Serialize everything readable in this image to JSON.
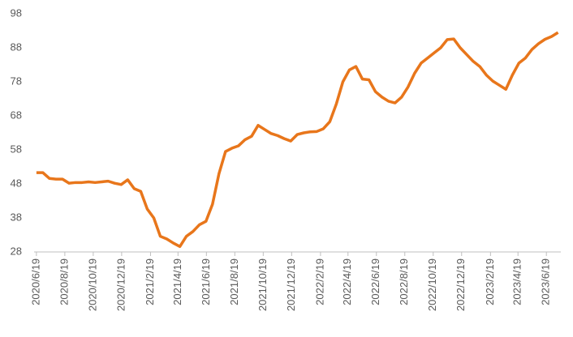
{
  "chart_data": {
    "type": "line",
    "x": [
      "2020/6/19",
      "2020/7/3",
      "2020/7/17",
      "2020/7/31",
      "2020/8/14",
      "2020/8/28",
      "2020/9/11",
      "2020/9/25",
      "2020/10/9",
      "2020/10/23",
      "2020/11/6",
      "2020/11/20",
      "2020/12/4",
      "2020/12/18",
      "2021/1/1",
      "2021/1/15",
      "2021/1/29",
      "2021/2/12",
      "2021/2/26",
      "2021/3/12",
      "2021/3/26",
      "2021/4/9",
      "2021/4/23",
      "2021/5/7",
      "2021/5/21",
      "2021/6/4",
      "2021/6/18",
      "2021/7/2",
      "2021/7/16",
      "2021/7/30",
      "2021/8/13",
      "2021/8/27",
      "2021/9/10",
      "2021/9/24",
      "2021/10/8",
      "2021/10/22",
      "2021/11/5",
      "2021/11/19",
      "2021/12/3",
      "2021/12/17",
      "2021/12/31",
      "2022/1/14",
      "2022/1/28",
      "2022/2/11",
      "2022/2/25",
      "2022/3/11",
      "2022/3/25",
      "2022/4/8",
      "2022/4/22",
      "2022/5/6",
      "2022/5/20",
      "2022/6/3",
      "2022/6/17",
      "2022/7/1",
      "2022/7/15",
      "2022/7/29",
      "2022/8/12",
      "2022/8/26",
      "2022/9/9",
      "2022/9/23",
      "2022/10/7",
      "2022/10/21",
      "2022/11/4",
      "2022/11/18",
      "2022/12/2",
      "2022/12/16",
      "2022/12/30",
      "2023/1/13",
      "2023/1/27",
      "2023/2/10",
      "2023/2/24",
      "2023/3/10",
      "2023/3/24",
      "2023/4/7",
      "2023/4/21",
      "2023/5/5",
      "2023/5/19",
      "2023/6/2",
      "2023/6/16",
      "2023/6/30",
      "2023/7/14"
    ],
    "series": [
      {
        "color": "#e8761b",
        "values": [
          51.3,
          51.3,
          49.6,
          49.4,
          49.4,
          48.2,
          48.4,
          48.4,
          48.6,
          48.4,
          48.6,
          48.8,
          48.2,
          47.8,
          49.2,
          46.6,
          45.8,
          40.6,
          38,
          32.6,
          31.8,
          30.6,
          29.6,
          32.6,
          34,
          36,
          37,
          42,
          51,
          57.5,
          58.5,
          59.2,
          61,
          62,
          65.2,
          64,
          62.8,
          62.2,
          61.3,
          60.6,
          62.5,
          63,
          63.3,
          63.4,
          64.2,
          66.3,
          71.5,
          78,
          81.5,
          82.5,
          78.8,
          78.6,
          75.1,
          73.5,
          72.3,
          71.8,
          73.5,
          76.5,
          80.5,
          83.5,
          85,
          86.5,
          88,
          90.4,
          90.6,
          88,
          86,
          84,
          82.5,
          80,
          78.2,
          77,
          75.8,
          80,
          83.5,
          85,
          87.5,
          89.2,
          90.5,
          91.3,
          92.5
        ]
      }
    ],
    "xlim": [
      "2020/6/14",
      "2023/7/20"
    ],
    "xticks": [
      "2020/6/19",
      "2020/8/19",
      "2020/10/19",
      "2020/12/19",
      "2021/2/19",
      "2021/4/19",
      "2021/6/19",
      "2021/8/19",
      "2021/10/19",
      "2021/12/19",
      "2022/2/19",
      "2022/4/19",
      "2022/6/19",
      "2022/8/19",
      "2022/10/19",
      "2022/12/19",
      "2023/2/19",
      "2023/4/19",
      "2023/6/19"
    ],
    "ylim": [
      28,
      98
    ],
    "yticks": [
      28,
      38,
      48,
      58,
      68,
      78,
      88,
      98
    ],
    "grid": false
  }
}
